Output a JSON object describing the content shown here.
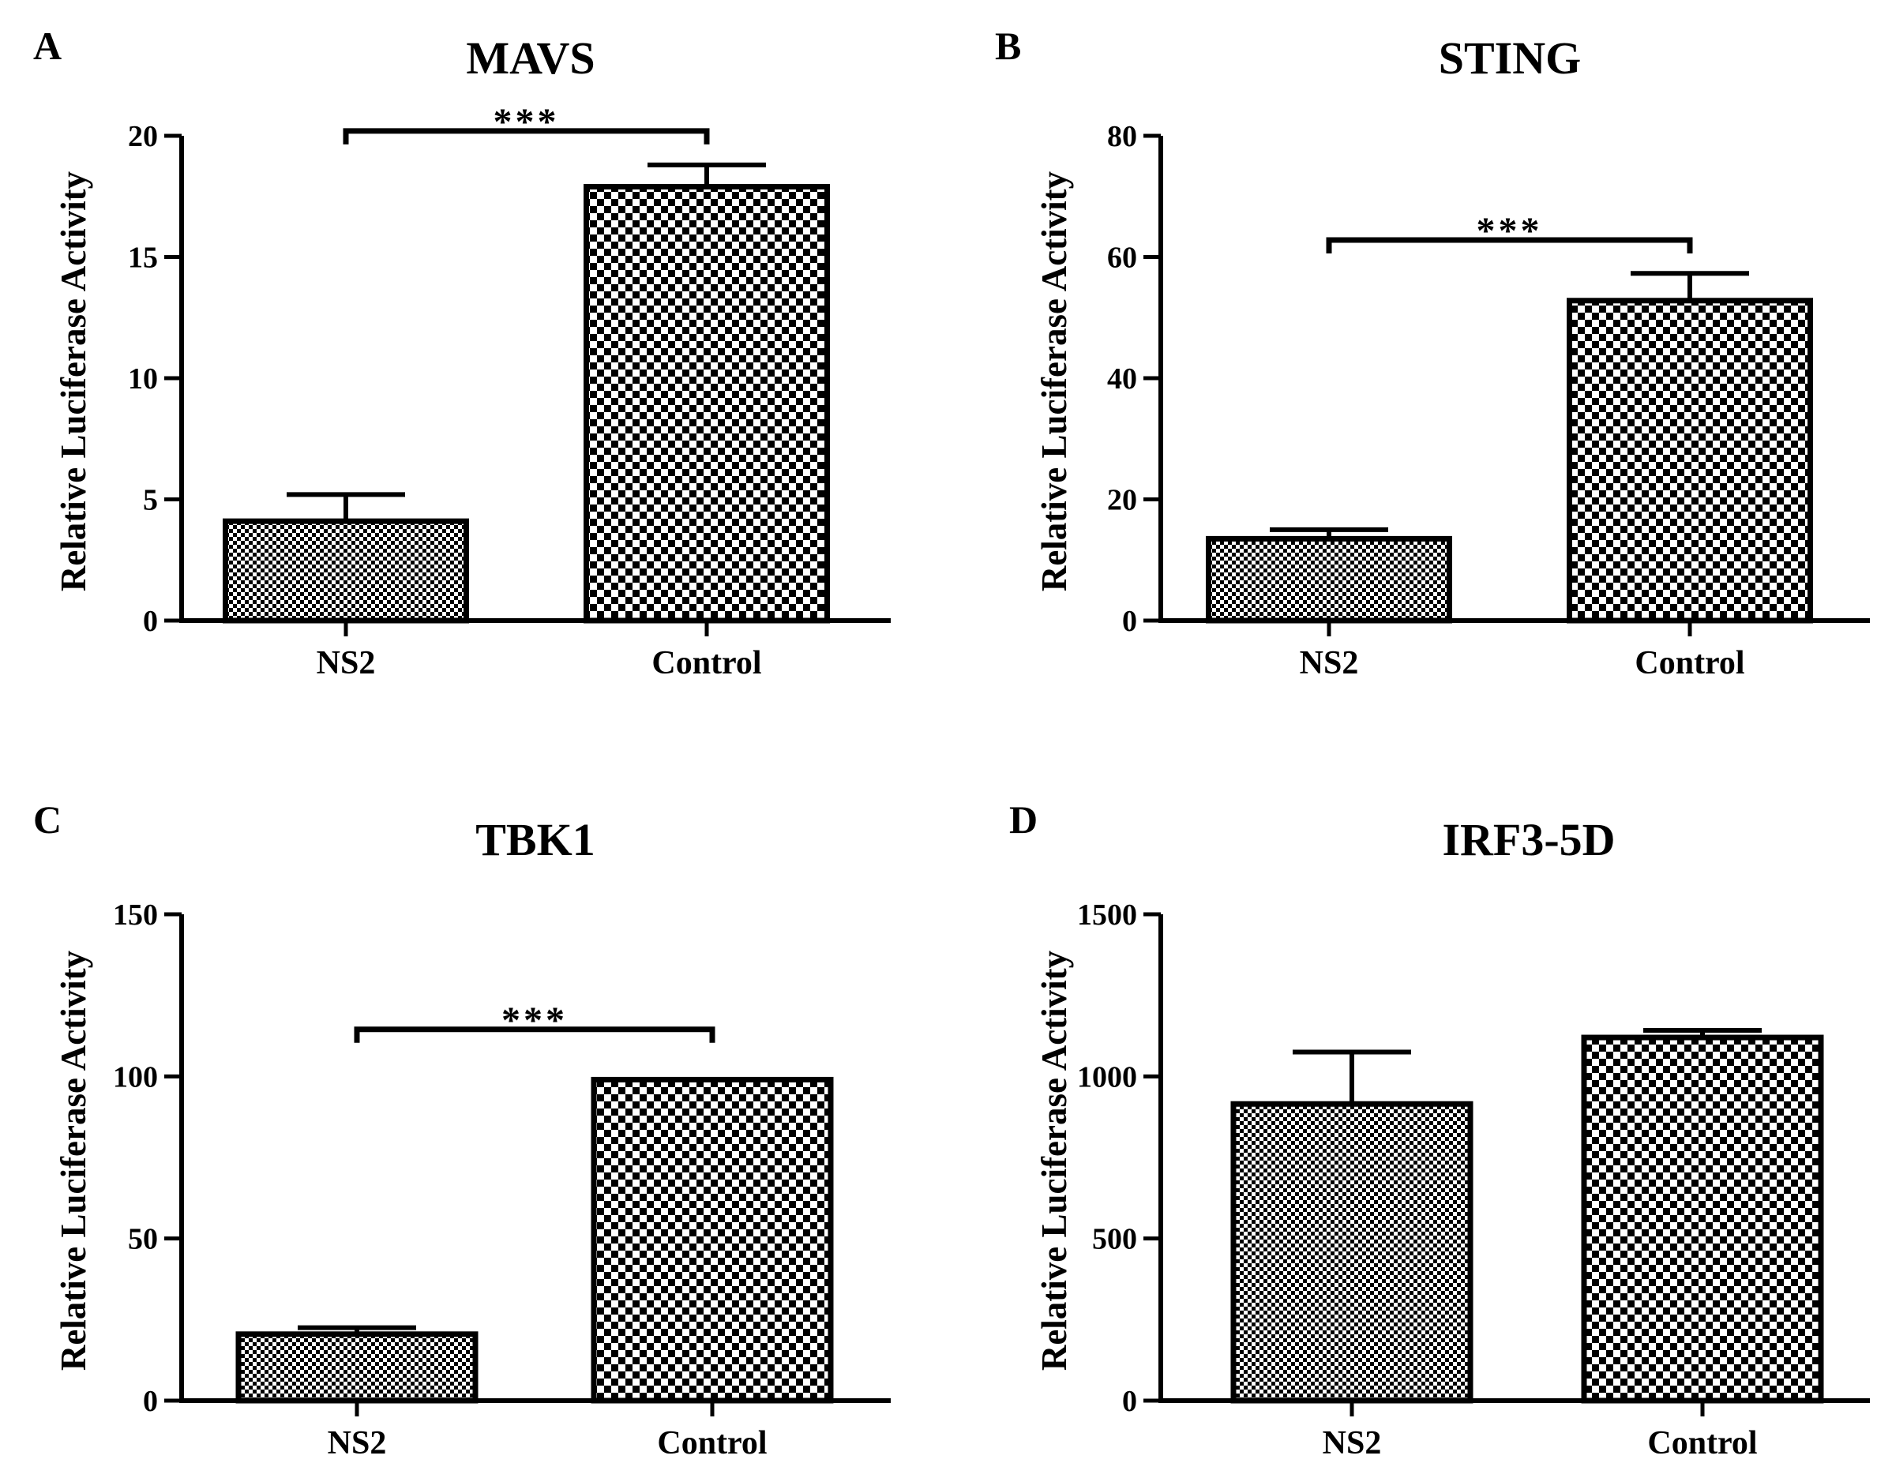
{
  "figure": {
    "colors": {
      "ink": "#000000",
      "background": "#ffffff",
      "ns2_fill": "checker-fine",
      "control_fill": "checker-coarse"
    }
  },
  "chart_data": [
    {
      "panel": "A",
      "type": "bar",
      "title": "MAVS",
      "xlabel": "",
      "ylabel": "Relative Luciferase Activity",
      "categories": [
        "NS2",
        "Control"
      ],
      "values": [
        4.1,
        17.9
      ],
      "errors": [
        1.1,
        0.9
      ],
      "ylim": [
        0,
        20
      ],
      "yticks": [
        0,
        5,
        10,
        15,
        20
      ],
      "yticklabels": [
        "0",
        "5",
        "10",
        "15",
        "20"
      ],
      "significance": {
        "between": [
          "NS2",
          "Control"
        ],
        "label": "***",
        "level": 20.2
      }
    },
    {
      "panel": "B",
      "type": "bar",
      "title": "STING",
      "xlabel": "",
      "ylabel": "Relative Luciferase Activity",
      "categories": [
        "NS2",
        "Control"
      ],
      "values": [
        13.5,
        52.8
      ],
      "errors": [
        1.5,
        4.5
      ],
      "ylim": [
        0,
        80
      ],
      "yticks": [
        0,
        20,
        40,
        60,
        80
      ],
      "yticklabels": [
        "0",
        "20",
        "40",
        "60",
        "80"
      ],
      "significance": {
        "between": [
          "NS2",
          "Control"
        ],
        "label": "***",
        "level": 62.8
      }
    },
    {
      "panel": "C",
      "type": "bar",
      "title": "TBK1",
      "xlabel": "",
      "ylabel": "Relative Luciferase Activity",
      "categories": [
        "NS2",
        "Control"
      ],
      "values": [
        20.5,
        99
      ],
      "errors": [
        2.0,
        0.0
      ],
      "ylim": [
        0,
        150
      ],
      "yticks": [
        0,
        50,
        100,
        150
      ],
      "yticklabels": [
        "0",
        "50",
        "100",
        "150"
      ],
      "significance": {
        "between": [
          "NS2",
          "Control"
        ],
        "label": "***",
        "level": 114.5
      }
    },
    {
      "panel": "D",
      "type": "bar",
      "title": "IRF3-5D",
      "xlabel": "",
      "ylabel": "Relative Luciferase Activity",
      "categories": [
        "NS2",
        "Control"
      ],
      "values": [
        915,
        1120
      ],
      "errors": [
        160,
        22
      ],
      "ylim": [
        0,
        1500
      ],
      "yticks": [
        0,
        500,
        1000,
        1500
      ],
      "yticklabels": [
        "0",
        "500",
        "1000",
        "1500"
      ],
      "significance": null
    }
  ]
}
